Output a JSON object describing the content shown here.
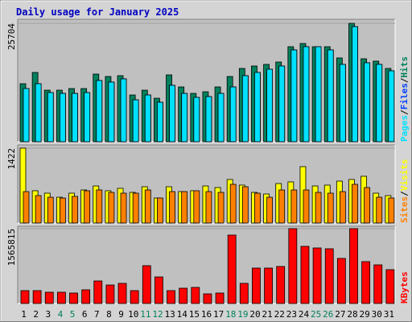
{
  "chart_data": [
    {
      "type": "bar",
      "title": "Daily usage for January 2025",
      "legend_separator": "/",
      "series": [
        {
          "name": "Hits",
          "color": "#00805c",
          "values": [
            12590,
            15040,
            11190,
            11190,
            11540,
            11540,
            14690,
            14160,
            14340,
            10140,
            11190,
            9440,
            14510,
            11890,
            10490,
            10840,
            11890,
            14160,
            15910,
            16440,
            16790,
            17310,
            20630,
            21330,
            20630,
            20630,
            18190,
            25704,
            18010,
            17490,
            15910
          ]
        },
        {
          "name": "Files",
          "color": "#0040ff",
          "values": [
            11540,
            12590,
            10670,
            10490,
            10490,
            10670,
            13290,
            12940,
            13640,
            9090,
            10140,
            8570,
            12240,
            10490,
            9620,
            9790,
            10490,
            11890,
            14340,
            15040,
            15740,
            16440,
            19930,
            20630,
            20630,
            19930,
            16790,
            25000,
            17140,
            16790,
            15390
          ]
        },
        {
          "name": "Pages",
          "color": "#00e0ff",
          "values": [
            11540,
            12590,
            10670,
            10490,
            10490,
            10670,
            13290,
            12940,
            13640,
            9090,
            10140,
            8570,
            12240,
            10490,
            9620,
            9790,
            10490,
            11890,
            14340,
            15040,
            15740,
            16440,
            19930,
            20630,
            20630,
            19930,
            16790,
            25000,
            17140,
            16790,
            15390
          ]
        }
      ],
      "ylim": [
        0,
        26578
      ],
      "yticks": [
        25704
      ]
    },
    {
      "type": "bar",
      "legend_separator": "/",
      "series": [
        {
          "name": "Visits",
          "color": "#ffff00",
          "values": [
            1422,
            612,
            566,
            489,
            566,
            627,
            703,
            612,
            658,
            581,
            688,
            474,
            688,
            596,
            612,
            703,
            673,
            826,
            719,
            581,
            550,
            749,
            780,
            1070,
            703,
            719,
            795,
            826,
            887,
            566,
            520
          ]
        },
        {
          "name": "Sites",
          "color": "#ff8000",
          "values": [
            596,
            520,
            489,
            474,
            505,
            612,
            627,
            581,
            566,
            566,
            627,
            474,
            596,
            596,
            612,
            596,
            581,
            734,
            688,
            566,
            489,
            627,
            627,
            627,
            581,
            566,
            596,
            734,
            673,
            489,
            474
          ]
        }
      ],
      "ylim": [
        0,
        1483
      ],
      "yticks": [
        1422
      ]
    },
    {
      "type": "bar",
      "series": [
        {
          "name": "KBytes",
          "color": "#ff0000",
          "values": [
            269390,
            269390,
            235720,
            235720,
            218880,
            286230,
            471440,
            387250,
            420930,
            269390,
            791340,
            555620,
            269390,
            319900,
            336740,
            202040,
            218880,
            1431140,
            420930,
            740830,
            740830,
            774500,
            1565815,
            1195430,
            1161750,
            1144920,
            942870,
            1565815,
            875520,
            808180,
            707150
          ]
        }
      ],
      "ylim": [
        0,
        1616324
      ],
      "yticks": [
        1565815
      ],
      "categories": [
        "1",
        "2",
        "3",
        "4",
        "5",
        "6",
        "7",
        "8",
        "9",
        "10",
        "11",
        "12",
        "13",
        "14",
        "15",
        "16",
        "17",
        "18",
        "19",
        "20",
        "21",
        "22",
        "23",
        "24",
        "25",
        "26",
        "27",
        "28",
        "29",
        "30",
        "31"
      ],
      "highlighted": [
        3,
        4,
        10,
        11,
        17,
        18,
        24,
        25
      ],
      "highlight_color": "#00805c"
    }
  ]
}
